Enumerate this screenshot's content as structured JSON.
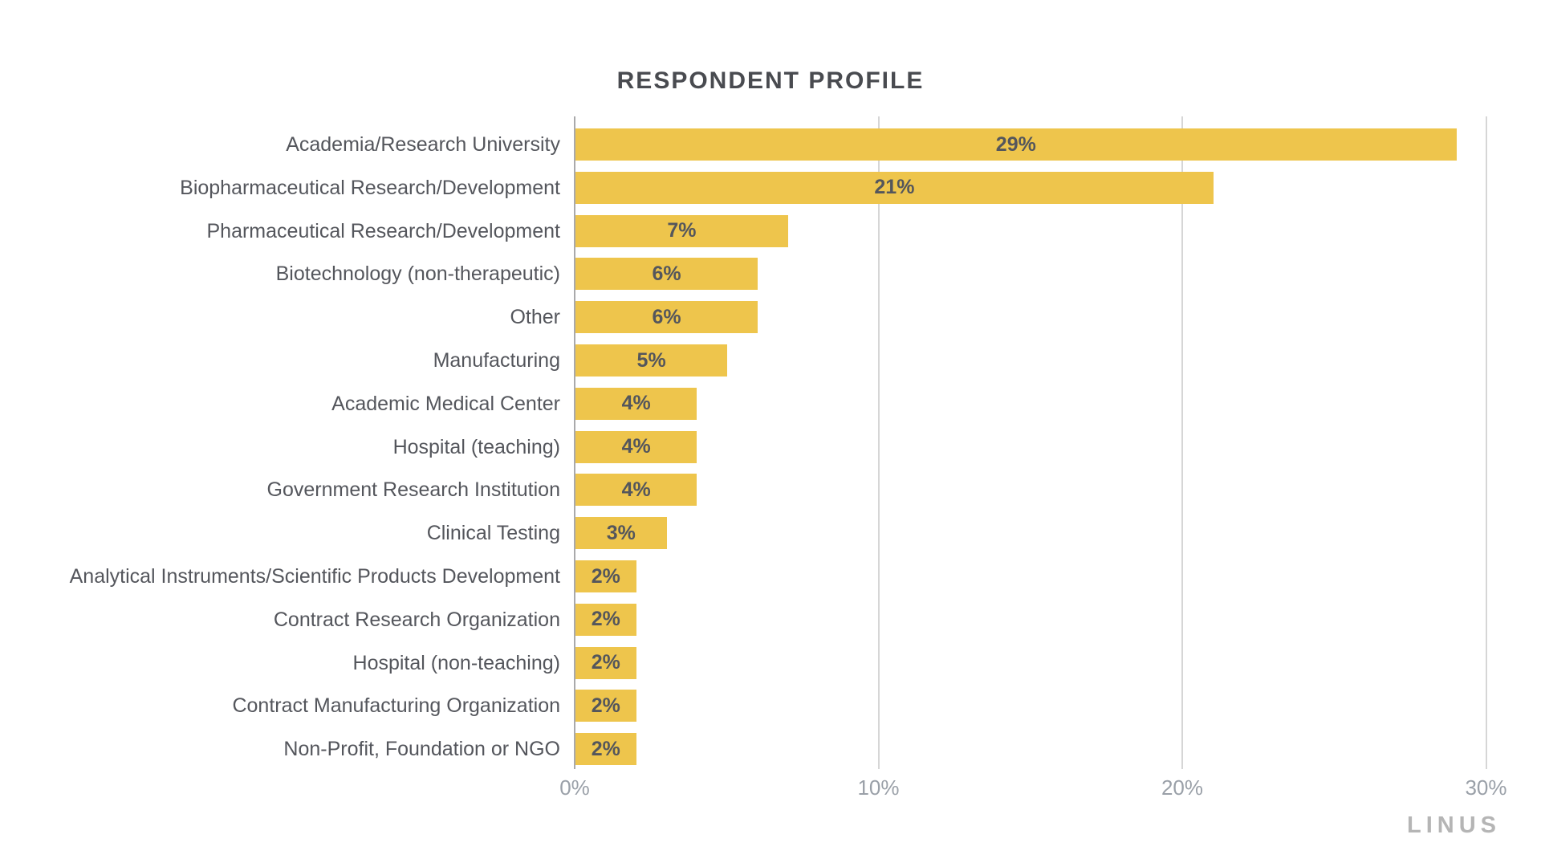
{
  "title": "RESPONDENT PROFILE",
  "brand": {
    "label": "LINUS"
  },
  "colors": {
    "bar": "#eec54c",
    "axis_line": "#a9a9ab",
    "gridline": "#d6d6d6",
    "title_text": "#494b50",
    "category_text": "#54565c",
    "value_text": "#54565c",
    "tick_text": "#9aa0a8",
    "brand_text": "#b5b5b5",
    "background": "#ffffff"
  },
  "chart_data": {
    "type": "bar",
    "orientation": "horizontal",
    "title": "RESPONDENT PROFILE",
    "categories": [
      "Academia/Research University",
      "Biopharmaceutical Research/Development",
      "Pharmaceutical Research/Development",
      "Biotechnology (non-therapeutic)",
      "Other",
      "Manufacturing",
      "Academic Medical Center",
      "Hospital (teaching)",
      "Government Research Institution",
      "Clinical Testing",
      "Analytical Instruments/Scientific Products Development",
      "Contract Research Organization",
      "Hospital (non-teaching)",
      "Contract Manufacturing Organization",
      "Non-Profit, Foundation or NGO"
    ],
    "values": [
      29,
      21,
      7,
      6,
      6,
      5,
      4,
      4,
      4,
      3,
      2,
      2,
      2,
      2,
      2
    ],
    "value_labels": [
      "29%",
      "21%",
      "7%",
      "6%",
      "6%",
      "5%",
      "4%",
      "4%",
      "4%",
      "3%",
      "2%",
      "2%",
      "2%",
      "2%",
      "2%"
    ],
    "value_label_position": "inside-center",
    "xlabel": "",
    "ylabel": "",
    "xlim": [
      0,
      30
    ],
    "x_ticks": [
      0,
      10,
      20,
      30
    ],
    "x_tick_labels": [
      "0%",
      "10%",
      "20%",
      "30%"
    ],
    "grid": "vertical",
    "legend": "none"
  }
}
